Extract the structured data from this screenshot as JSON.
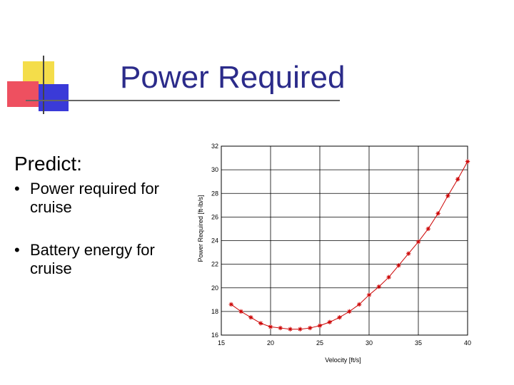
{
  "slide": {
    "title": "Power Required",
    "predict_label": "Predict:",
    "bullets": [
      "Power required for cruise",
      "Battery energy for cruise"
    ],
    "bullet_symbol": "•",
    "accent_colors": {
      "yellow": "#f4dd4a",
      "red": "#ee5060",
      "blue": "#3a3ad8",
      "title": "#2b2b8a"
    }
  },
  "chart_data": {
    "type": "line",
    "title": "",
    "xlabel": "Velocity [ft/s]",
    "ylabel": "Power Required [ft-lb/s]",
    "xlim": [
      15,
      40
    ],
    "ylim": [
      16,
      32
    ],
    "xticks": [
      15,
      20,
      25,
      30,
      35,
      40
    ],
    "yticks": [
      16,
      18,
      20,
      22,
      24,
      26,
      28,
      30,
      32
    ],
    "grid": true,
    "marker": "asterisk",
    "color": "#cc0000",
    "series": [
      {
        "x": [
          16,
          17,
          18,
          19,
          20,
          21,
          22,
          23,
          24,
          25,
          26,
          27,
          28,
          29,
          30,
          31,
          32,
          33,
          34,
          35,
          36,
          37,
          38,
          39,
          40
        ],
        "values": [
          18.6,
          18.0,
          17.5,
          17.0,
          16.7,
          16.6,
          16.5,
          16.5,
          16.6,
          16.8,
          17.1,
          17.5,
          18.0,
          18.6,
          19.4,
          20.1,
          20.9,
          21.9,
          22.9,
          23.9,
          25.0,
          26.3,
          27.8,
          29.2,
          30.7
        ]
      }
    ]
  }
}
